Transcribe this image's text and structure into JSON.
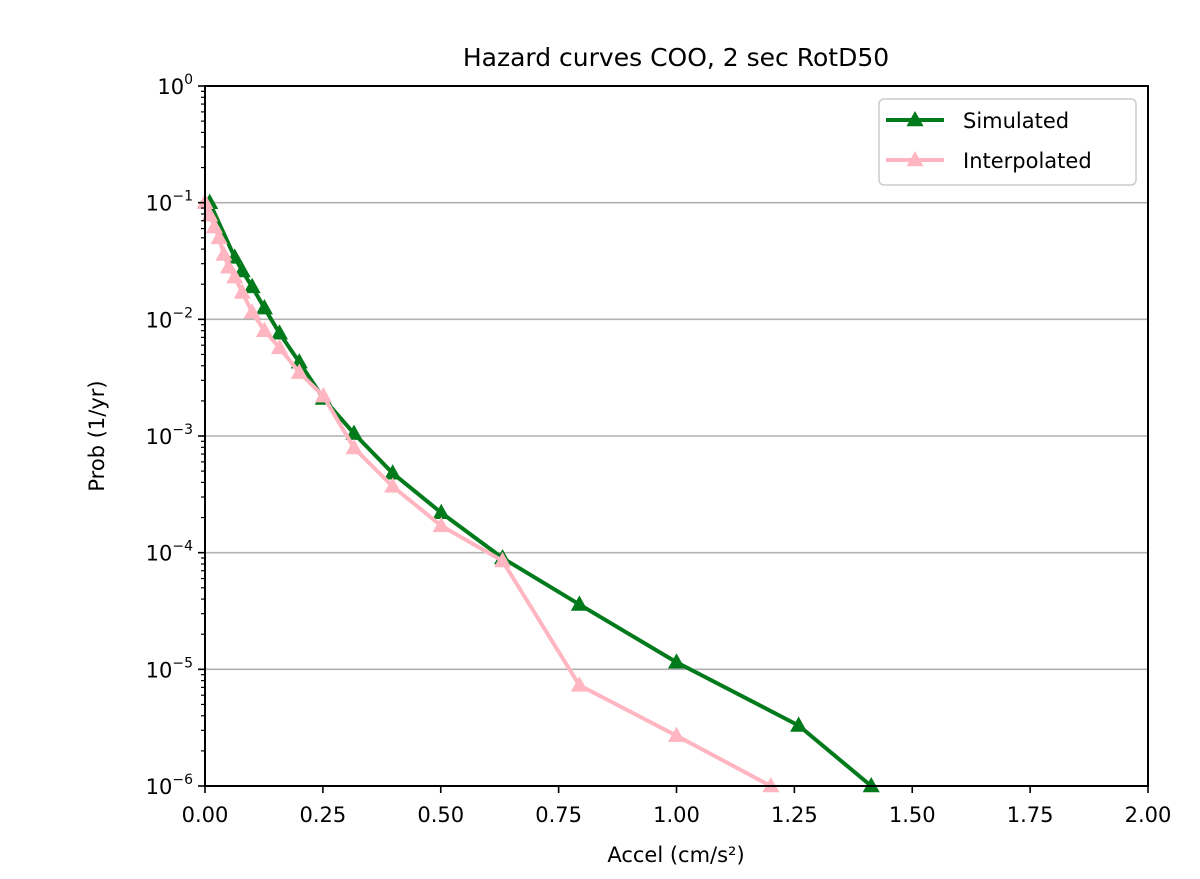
{
  "chart_data": {
    "type": "line",
    "title": "Hazard curves COO, 2 sec RotD50",
    "xlabel": "Accel (cm/s²)",
    "ylabel": "Prob (1/yr)",
    "xlim": [
      0,
      2.0
    ],
    "ylim": [
      1e-06,
      1
    ],
    "yscale": "log",
    "grid": "y-major",
    "legend_placement": "top-right",
    "xticks": [
      "0.00",
      "0.25",
      "0.50",
      "0.75",
      "1.00",
      "1.25",
      "1.50",
      "1.75",
      "2.00"
    ],
    "xtick_values": [
      0,
      0.25,
      0.5,
      0.75,
      1.0,
      1.25,
      1.5,
      1.75,
      2.0
    ],
    "yticks": [
      {
        "base": "10",
        "exp": "0"
      },
      {
        "base": "10",
        "exp": "−1"
      },
      {
        "base": "10",
        "exp": "−2"
      },
      {
        "base": "10",
        "exp": "−3"
      },
      {
        "base": "10",
        "exp": "−4"
      },
      {
        "base": "10",
        "exp": "−5"
      },
      {
        "base": "10",
        "exp": "−6"
      }
    ],
    "ytick_values": [
      1,
      0.1,
      0.01,
      0.001,
      0.0001,
      1e-05,
      1e-06
    ],
    "series": [
      {
        "name": "Simulated",
        "color": "#007a1a",
        "marker": "triangle-up",
        "x": [
          0.01,
          0.063,
          0.079,
          0.1,
          0.126,
          0.158,
          0.2,
          0.251,
          0.316,
          0.398,
          0.501,
          0.631,
          0.794,
          1.0,
          1.259,
          1.413
        ],
        "y": [
          0.1,
          0.034,
          0.026,
          0.019,
          0.0125,
          0.0076,
          0.0043,
          0.0021,
          0.00105,
          0.00048,
          0.00022,
          9e-05,
          3.6e-05,
          1.15e-05,
          3.3e-06,
          1e-06
        ]
      },
      {
        "name": "Interpolated",
        "color": "#ffb6c1",
        "marker": "triangle-up",
        "x": [
          0.0,
          0.01,
          0.02,
          0.03,
          0.04,
          0.05,
          0.063,
          0.079,
          0.1,
          0.126,
          0.158,
          0.2,
          0.251,
          0.316,
          0.398,
          0.501,
          0.631,
          0.794,
          1.0,
          1.2
        ],
        "y": [
          0.1,
          0.078,
          0.062,
          0.05,
          0.036,
          0.028,
          0.023,
          0.017,
          0.0115,
          0.008,
          0.0057,
          0.0035,
          0.0022,
          0.00079,
          0.00037,
          0.00017,
          8.5e-05,
          7.3e-06,
          2.7e-06,
          1e-06
        ]
      }
    ]
  }
}
